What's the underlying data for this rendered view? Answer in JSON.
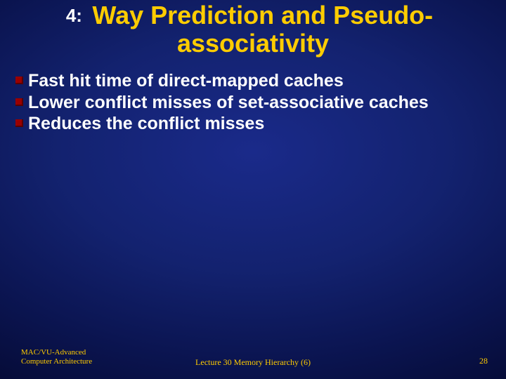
{
  "title": {
    "prefix": "4:",
    "line1": "Way Prediction and Pseudo-",
    "line2": "associativity"
  },
  "bullets": [
    "Fast hit time of direct-mapped caches",
    "Lower conflict misses of set-associative caches",
    "Reduces the conflict misses"
  ],
  "footer": {
    "left_line1": "MAC/VU-Advanced",
    "left_line2": "Computer Architecture",
    "center": "Lecture 30 Memory Hierarchy (6)",
    "page": "28"
  },
  "colors": {
    "title_color": "#ffcc00",
    "text_color": "#ffffff",
    "bullet_marker": "#990000",
    "footer_color": "#ffcc00"
  }
}
